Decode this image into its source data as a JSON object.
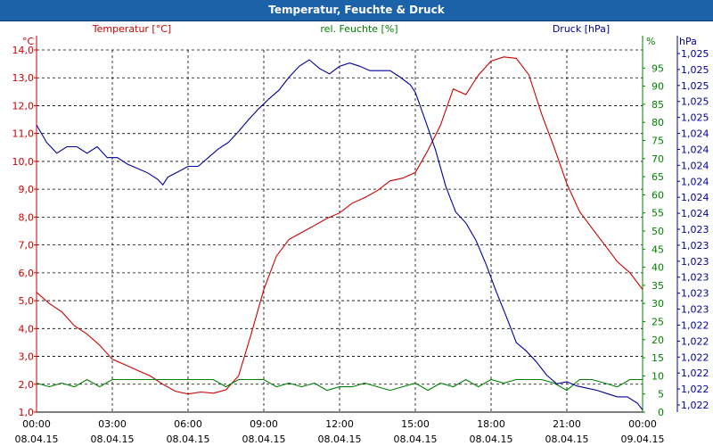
{
  "window": {
    "title": "Temperatur, Feuchte & Druck"
  },
  "chart_data": {
    "type": "line",
    "title": "Temperatur, Feuchte & Druck",
    "x_ticks": [
      {
        "time": "00:00",
        "date": "08.04.15"
      },
      {
        "time": "03:00",
        "date": "08.04.15"
      },
      {
        "time": "06:00",
        "date": "08.04.15"
      },
      {
        "time": "09:00",
        "date": "08.04.15"
      },
      {
        "time": "12:00",
        "date": "08.04.15"
      },
      {
        "time": "15:00",
        "date": "08.04.15"
      },
      {
        "time": "18:00",
        "date": "08.04.15"
      },
      {
        "time": "21:00",
        "date": "08.04.15"
      },
      {
        "time": "00:00",
        "date": "09.04.15"
      }
    ],
    "xlim_hours": [
      0,
      24
    ],
    "grid": true,
    "axes": {
      "temperature": {
        "label": "Temperatur [°C]",
        "unit": "°C",
        "color": "#cc0000",
        "ylim": [
          1.0,
          14.0
        ],
        "ticks": [
          "1,0",
          "2,0",
          "3,0",
          "4,0",
          "5,0",
          "6,0",
          "7,0",
          "8,0",
          "9,0",
          "10,0",
          "11,0",
          "12,0",
          "13,0",
          "14,0"
        ]
      },
      "humidity": {
        "label": "rel. Feuchte [%]",
        "unit": "%",
        "color": "#008000",
        "ylim": [
          0,
          100
        ],
        "ticks": [
          "0",
          "5",
          "10",
          "15",
          "20",
          "25",
          "30",
          "35",
          "40",
          "45",
          "50",
          "55",
          "60",
          "65",
          "70",
          "75",
          "80",
          "85",
          "90",
          "95"
        ]
      },
      "pressure": {
        "label": "Druck [hPa]",
        "unit": "hPa",
        "color": "#000099",
        "ylim": [
          1021.94,
          1025.27
        ],
        "ticks": [
          "1,022",
          "1,022",
          "1,022",
          "1,022",
          "1,022",
          "1,022",
          "1,023",
          "1,023",
          "1,023",
          "1,023",
          "1,023",
          "1,023",
          "1,024",
          "1,024",
          "1,024",
          "1,024",
          "1,024",
          "1,024",
          "1,025",
          "1,025",
          "1,025",
          "1,025",
          "1,025"
        ]
      }
    },
    "series": [
      {
        "name": "Temperatur",
        "axis": "temperature",
        "color": "#cc0000",
        "x": [
          0,
          0.5,
          1,
          1.5,
          2,
          2.5,
          3,
          3.5,
          4,
          4.5,
          5,
          5.5,
          6,
          6.5,
          7,
          7.5,
          8,
          8.5,
          9,
          9.5,
          10,
          10.5,
          11,
          11.5,
          12,
          12.5,
          13,
          13.5,
          14,
          14.5,
          15,
          15.5,
          16,
          16.5,
          17,
          17.5,
          18,
          18.5,
          19,
          19.5,
          20,
          20.5,
          21,
          21.5,
          22,
          22.5,
          23,
          23.5,
          24
        ],
        "values": [
          5.3,
          4.9,
          4.6,
          4.1,
          3.8,
          3.4,
          2.9,
          2.7,
          2.5,
          2.3,
          2.0,
          1.75,
          1.65,
          1.72,
          1.68,
          1.8,
          2.3,
          3.8,
          5.4,
          6.6,
          7.2,
          7.45,
          7.7,
          7.95,
          8.15,
          8.5,
          8.7,
          8.95,
          9.3,
          9.4,
          9.6,
          10.4,
          11.3,
          12.6,
          12.4,
          13.1,
          13.6,
          13.75,
          13.7,
          13.1,
          11.7,
          10.5,
          9.2,
          8.2,
          7.6,
          7.0,
          6.4,
          6.0,
          5.4
        ]
      },
      {
        "name": "rel. Feuchte",
        "axis": "humidity",
        "color": "#008000",
        "x": [
          0,
          0.5,
          1,
          1.5,
          2,
          2.5,
          3,
          3.5,
          4,
          4.5,
          5,
          5.5,
          6,
          6.5,
          7,
          7.5,
          8,
          8.5,
          9,
          9.5,
          10,
          10.5,
          11,
          11.5,
          12,
          12.5,
          13,
          13.5,
          14,
          14.5,
          15,
          15.5,
          16,
          16.5,
          17,
          17.5,
          18,
          18.5,
          19,
          19.5,
          20,
          20.5,
          21,
          21.5,
          22,
          22.5,
          23,
          23.5,
          24
        ],
        "values": [
          8,
          7,
          8,
          7,
          9,
          7,
          9,
          9,
          9,
          9,
          9,
          9,
          9,
          9,
          9,
          7,
          9,
          9,
          9,
          7,
          8,
          7,
          8,
          6,
          7,
          7,
          8,
          7,
          6,
          7,
          8,
          6,
          8,
          7,
          9,
          7,
          9,
          8,
          9,
          9,
          9,
          8,
          6,
          9,
          9,
          8,
          7,
          9,
          9
        ]
      },
      {
        "name": "Druck",
        "axis": "pressure",
        "color": "#000099",
        "x": [
          0,
          0.4,
          0.8,
          1.2,
          1.6,
          2.0,
          2.4,
          2.8,
          3.2,
          3.6,
          4.0,
          4.4,
          4.8,
          5.0,
          5.2,
          5.6,
          6.0,
          6.4,
          6.8,
          7.2,
          7.6,
          8.0,
          8.4,
          8.8,
          9.2,
          9.6,
          10.0,
          10.4,
          10.8,
          11.2,
          11.6,
          12.0,
          12.4,
          12.8,
          13.2,
          13.6,
          14.0,
          14.4,
          14.8,
          15.0,
          15.4,
          15.8,
          16.2,
          16.6,
          17.0,
          17.4,
          17.8,
          18.2,
          18.6,
          19.0,
          19.4,
          19.8,
          20.2,
          20.6,
          21.0,
          21.4,
          21.8,
          22.2,
          22.6,
          23.0,
          23.4,
          23.8,
          24.0
        ],
        "values": [
          1024.58,
          1024.42,
          1024.32,
          1024.38,
          1024.38,
          1024.32,
          1024.38,
          1024.28,
          1024.28,
          1024.22,
          1024.18,
          1024.14,
          1024.08,
          1024.03,
          1024.1,
          1024.15,
          1024.2,
          1024.2,
          1024.28,
          1024.36,
          1024.42,
          1024.52,
          1024.63,
          1024.73,
          1024.82,
          1024.9,
          1025.02,
          1025.12,
          1025.18,
          1025.1,
          1025.05,
          1025.12,
          1025.15,
          1025.12,
          1025.08,
          1025.08,
          1025.08,
          1025.02,
          1024.95,
          1024.88,
          1024.62,
          1024.35,
          1024.02,
          1023.78,
          1023.68,
          1023.52,
          1023.3,
          1023.05,
          1022.82,
          1022.58,
          1022.5,
          1022.4,
          1022.28,
          1022.2,
          1022.22,
          1022.18,
          1022.16,
          1022.14,
          1022.11,
          1022.08,
          1022.08,
          1022.02,
          1021.96
        ]
      }
    ]
  }
}
